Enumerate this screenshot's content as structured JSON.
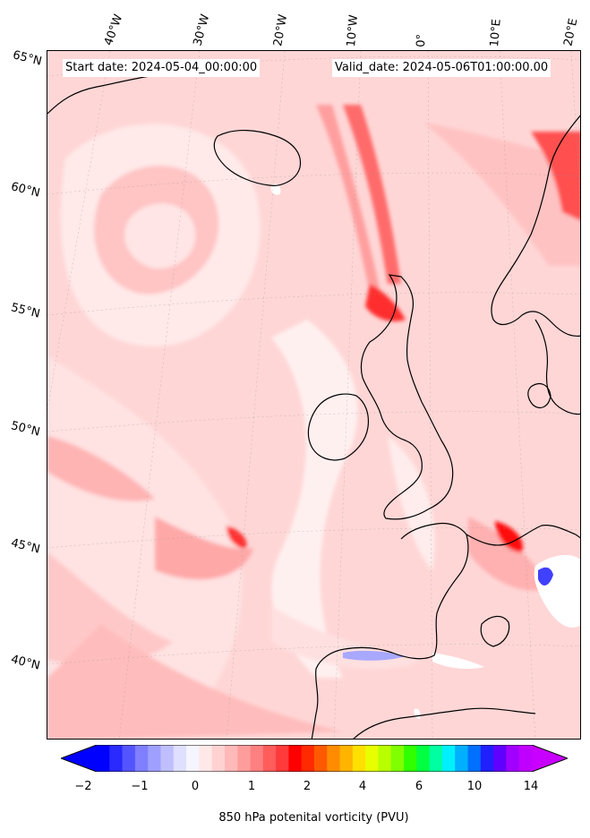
{
  "header": {
    "start_date": "Start date: 2024-05-04_00:00:00",
    "valid_date": "Valid_date: 2024-05-06T01:00:00.00"
  },
  "longitude_labels": [
    "40°W",
    "30°W",
    "20°W",
    "10°W",
    "0°",
    "10°E",
    "20°E"
  ],
  "latitude_labels": [
    "65°N",
    "60°N",
    "55°N",
    "50°N",
    "45°N",
    "40°N"
  ],
  "colorbar": {
    "label": "850 hPa potenital vorticity (PVU)",
    "tick_labels": [
      "−2",
      "−1",
      "0",
      "1",
      "2",
      "4",
      "6",
      "10",
      "14"
    ],
    "colors": [
      "#0000ff",
      "#2a2aff",
      "#5555ff",
      "#7f7fff",
      "#9f9fff",
      "#bfbfff",
      "#dfdfff",
      "#f5f5ff",
      "#ffe8e8",
      "#ffd2d2",
      "#ffb9b9",
      "#ff9d9d",
      "#ff8080",
      "#ff5c5c",
      "#ff3a3a",
      "#ff0000",
      "#ff2a00",
      "#ff5a00",
      "#ff8c00",
      "#ffb400",
      "#ffe000",
      "#e8ff00",
      "#b8ff00",
      "#80ff00",
      "#30ff00",
      "#00ff40",
      "#00ffa0",
      "#00f0ff",
      "#00b0ff",
      "#0070ff",
      "#2020ff",
      "#6000ff",
      "#a000ff",
      "#c000ff"
    ],
    "under_color": "#0000ff",
    "over_color": "#c800ff"
  }
}
